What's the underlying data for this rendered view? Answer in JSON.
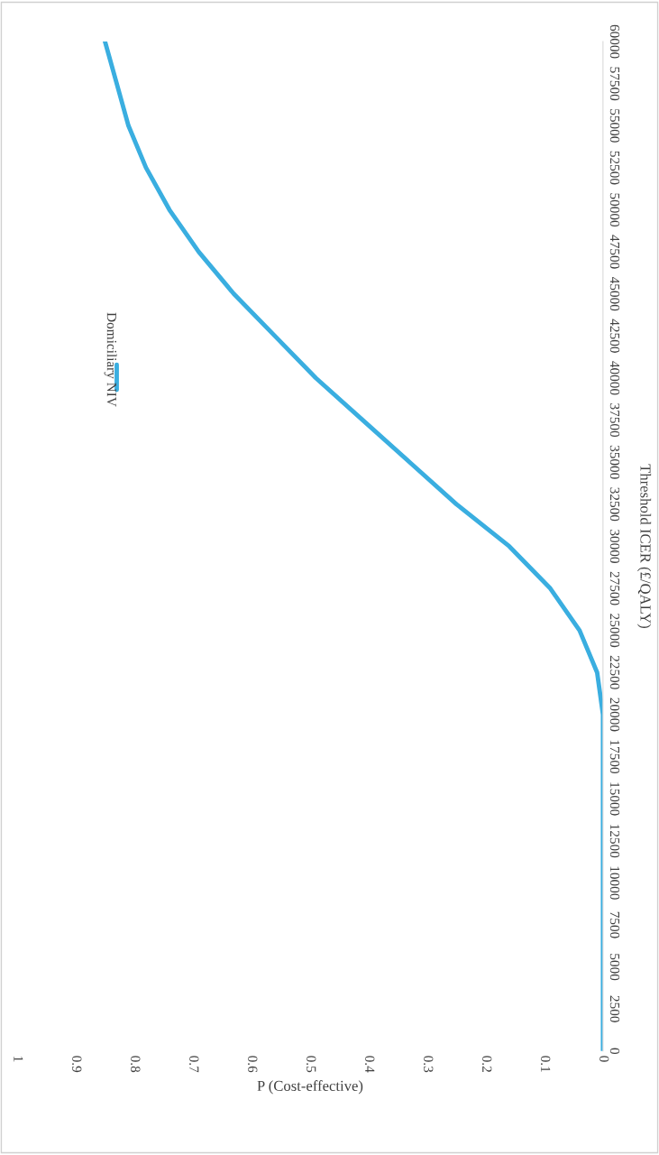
{
  "chart_data": {
    "type": "line",
    "xlabel": "P (Cost-effective)",
    "ylabel": "Threshold ICER (£/QALY)",
    "series": [
      {
        "name": "Domiciliary NIV",
        "color": "#3aaee0",
        "x": [
          0,
          0,
          0,
          0,
          0,
          0,
          0,
          0,
          0,
          0.01,
          0.04,
          0.09,
          0.16,
          0.25,
          0.33,
          0.41,
          0.49,
          0.56,
          0.63,
          0.69,
          0.74,
          0.78,
          0.81,
          0.83,
          0.85
        ],
        "values": [
          0,
          2500,
          5000,
          7500,
          10000,
          12500,
          15000,
          17500,
          20000,
          22500,
          25000,
          27500,
          30000,
          32500,
          35000,
          37500,
          40000,
          42500,
          45000,
          47500,
          50000,
          52500,
          55000,
          57500,
          60000
        ]
      }
    ],
    "ylim": [
      0,
      60000
    ],
    "yticks": [
      0,
      2500,
      5000,
      7500,
      10000,
      12500,
      15000,
      17500,
      20000,
      22500,
      25000,
      27500,
      30000,
      32500,
      35000,
      37500,
      40000,
      42500,
      45000,
      47500,
      50000,
      52500,
      55000,
      57500,
      60000
    ],
    "xlim": [
      1,
      0
    ],
    "xticks": [
      0,
      0.1,
      0.2,
      0.3,
      0.4,
      0.5,
      0.6,
      0.7,
      0.8,
      0.9,
      1
    ],
    "grid": false,
    "legend": "top",
    "marker": "none",
    "line_style": "solid"
  }
}
